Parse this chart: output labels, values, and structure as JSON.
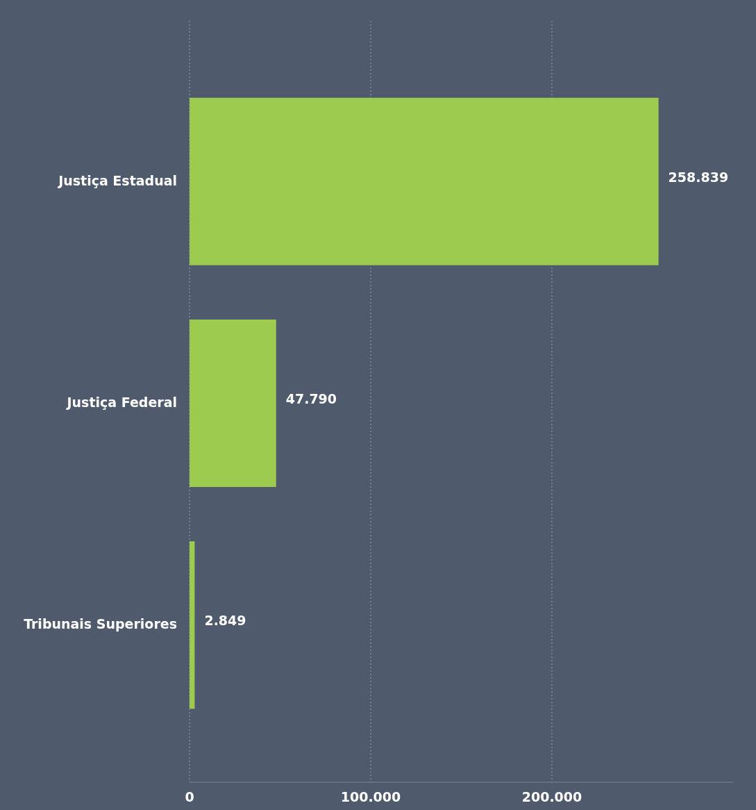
{
  "chart_data": {
    "type": "bar",
    "orientation": "horizontal",
    "categories": [
      "Justiça Estadual",
      "Justiça Federal",
      "Tribunais Superiores"
    ],
    "values": [
      258839,
      47790,
      2849
    ],
    "color": "#9ccb4f",
    "value_labels": [
      "258.839",
      "47.790",
      "2.849"
    ],
    "xlim": [
      0,
      300000
    ],
    "xticks": [
      0,
      {
        "value": 100000,
        "label": "100.000"
      },
      {
        "value": 200000,
        "label": "200.000"
      }
    ],
    "grid": "x"
  }
}
